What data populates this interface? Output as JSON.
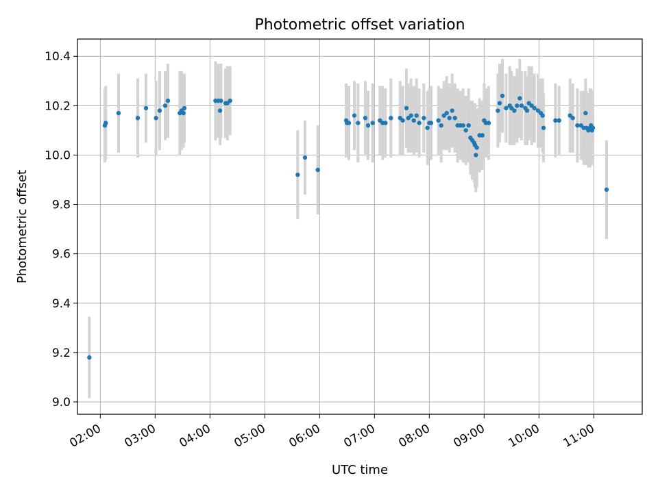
{
  "chart_data": {
    "type": "scatter",
    "title": "Photometric offset variation",
    "xlabel": "UTC time",
    "ylabel": "Photometric offset",
    "xlim": [
      "01:35",
      "11:53"
    ],
    "ylim": [
      8.95,
      10.47
    ],
    "x_ticks": [
      "02:00",
      "03:00",
      "04:00",
      "05:00",
      "06:00",
      "07:00",
      "08:00",
      "09:00",
      "10:00",
      "11:00"
    ],
    "y_ticks": [
      "9.0",
      "9.2",
      "9.4",
      "9.6",
      "9.8",
      "10.0",
      "10.2",
      "10.4"
    ],
    "grid": true,
    "colors": {
      "point": "#1f77b4",
      "errorbar": "#d3d3d3",
      "grid": "#b0b0b0"
    },
    "points": [
      {
        "t": "01:48",
        "y": 9.18,
        "err": 0.165
      },
      {
        "t": "02:05",
        "y": 10.12,
        "err": 0.15
      },
      {
        "t": "02:06",
        "y": 10.13,
        "err": 0.15
      },
      {
        "t": "02:20",
        "y": 10.17,
        "err": 0.16
      },
      {
        "t": "02:41",
        "y": 10.15,
        "err": 0.16
      },
      {
        "t": "02:50",
        "y": 10.19,
        "err": 0.14
      },
      {
        "t": "03:01",
        "y": 10.15,
        "err": 0.15
      },
      {
        "t": "03:05",
        "y": 10.18,
        "err": 0.16
      },
      {
        "t": "03:11",
        "y": 10.2,
        "err": 0.14
      },
      {
        "t": "03:14",
        "y": 10.22,
        "err": 0.15
      },
      {
        "t": "03:27",
        "y": 10.17,
        "err": 0.17
      },
      {
        "t": "03:29",
        "y": 10.18,
        "err": 0.16
      },
      {
        "t": "03:31",
        "y": 10.17,
        "err": 0.14
      },
      {
        "t": "03:32",
        "y": 10.19,
        "err": 0.14
      },
      {
        "t": "04:06",
        "y": 10.22,
        "err": 0.16
      },
      {
        "t": "04:09",
        "y": 10.22,
        "err": 0.15
      },
      {
        "t": "04:11",
        "y": 10.18,
        "err": 0.14
      },
      {
        "t": "04:12",
        "y": 10.22,
        "err": 0.15
      },
      {
        "t": "04:17",
        "y": 10.21,
        "err": 0.14
      },
      {
        "t": "04:19",
        "y": 10.21,
        "err": 0.15
      },
      {
        "t": "04:22",
        "y": 10.22,
        "err": 0.14
      },
      {
        "t": "05:36",
        "y": 9.92,
        "err": 0.18
      },
      {
        "t": "05:44",
        "y": 9.99,
        "err": 0.15
      },
      {
        "t": "05:58",
        "y": 9.94,
        "err": 0.18
      },
      {
        "t": "06:29",
        "y": 10.14,
        "err": 0.15
      },
      {
        "t": "06:30",
        "y": 10.13,
        "err": 0.14
      },
      {
        "t": "06:32",
        "y": 10.13,
        "err": 0.15
      },
      {
        "t": "06:38",
        "y": 10.16,
        "err": 0.14
      },
      {
        "t": "06:42",
        "y": 10.13,
        "err": 0.16
      },
      {
        "t": "06:50",
        "y": 10.15,
        "err": 0.15
      },
      {
        "t": "06:53",
        "y": 10.12,
        "err": 0.14
      },
      {
        "t": "06:58",
        "y": 10.13,
        "err": 0.16
      },
      {
        "t": "07:06",
        "y": 10.14,
        "err": 0.14
      },
      {
        "t": "07:09",
        "y": 10.13,
        "err": 0.15
      },
      {
        "t": "07:12",
        "y": 10.13,
        "err": 0.14
      },
      {
        "t": "07:18",
        "y": 10.15,
        "err": 0.16
      },
      {
        "t": "07:28",
        "y": 10.15,
        "err": 0.15
      },
      {
        "t": "07:31",
        "y": 10.14,
        "err": 0.14
      },
      {
        "t": "07:35",
        "y": 10.19,
        "err": 0.16
      },
      {
        "t": "07:37",
        "y": 10.15,
        "err": 0.14
      },
      {
        "t": "07:40",
        "y": 10.16,
        "err": 0.15
      },
      {
        "t": "07:43",
        "y": 10.14,
        "err": 0.14
      },
      {
        "t": "07:46",
        "y": 10.16,
        "err": 0.15
      },
      {
        "t": "07:49",
        "y": 10.13,
        "err": 0.14
      },
      {
        "t": "07:54",
        "y": 10.15,
        "err": 0.14
      },
      {
        "t": "07:58",
        "y": 10.11,
        "err": 0.15
      },
      {
        "t": "08:00",
        "y": 10.13,
        "err": 0.14
      },
      {
        "t": "08:02",
        "y": 10.13,
        "err": 0.15
      },
      {
        "t": "08:10",
        "y": 10.14,
        "err": 0.14
      },
      {
        "t": "08:13",
        "y": 10.12,
        "err": 0.15
      },
      {
        "t": "08:16",
        "y": 10.16,
        "err": 0.14
      },
      {
        "t": "08:19",
        "y": 10.17,
        "err": 0.15
      },
      {
        "t": "08:22",
        "y": 10.15,
        "err": 0.14
      },
      {
        "t": "08:25",
        "y": 10.18,
        "err": 0.15
      },
      {
        "t": "08:28",
        "y": 10.15,
        "err": 0.14
      },
      {
        "t": "08:31",
        "y": 10.12,
        "err": 0.15
      },
      {
        "t": "08:34",
        "y": 10.12,
        "err": 0.14
      },
      {
        "t": "08:37",
        "y": 10.12,
        "err": 0.15
      },
      {
        "t": "08:40",
        "y": 10.1,
        "err": 0.14
      },
      {
        "t": "08:43",
        "y": 10.12,
        "err": 0.15
      },
      {
        "t": "08:45",
        "y": 10.07,
        "err": 0.15
      },
      {
        "t": "08:47",
        "y": 10.06,
        "err": 0.16
      },
      {
        "t": "08:49",
        "y": 10.05,
        "err": 0.16
      },
      {
        "t": "08:50",
        "y": 10.04,
        "err": 0.17
      },
      {
        "t": "08:51",
        "y": 10.0,
        "err": 0.15
      },
      {
        "t": "08:52",
        "y": 10.03,
        "err": 0.16
      },
      {
        "t": "08:55",
        "y": 10.08,
        "err": 0.15
      },
      {
        "t": "08:58",
        "y": 10.08,
        "err": 0.14
      },
      {
        "t": "09:00",
        "y": 10.14,
        "err": 0.15
      },
      {
        "t": "09:02",
        "y": 10.13,
        "err": 0.14
      },
      {
        "t": "09:05",
        "y": 10.13,
        "err": 0.15
      },
      {
        "t": "09:15",
        "y": 10.18,
        "err": 0.15
      },
      {
        "t": "09:17",
        "y": 10.21,
        "err": 0.16
      },
      {
        "t": "09:20",
        "y": 10.24,
        "err": 0.15
      },
      {
        "t": "09:24",
        "y": 10.19,
        "err": 0.14
      },
      {
        "t": "09:28",
        "y": 10.2,
        "err": 0.16
      },
      {
        "t": "09:30",
        "y": 10.19,
        "err": 0.15
      },
      {
        "t": "09:33",
        "y": 10.18,
        "err": 0.14
      },
      {
        "t": "09:36",
        "y": 10.2,
        "err": 0.15
      },
      {
        "t": "09:39",
        "y": 10.23,
        "err": 0.16
      },
      {
        "t": "09:41",
        "y": 10.2,
        "err": 0.14
      },
      {
        "t": "09:45",
        "y": 10.19,
        "err": 0.15
      },
      {
        "t": "09:47",
        "y": 10.18,
        "err": 0.14
      },
      {
        "t": "09:49",
        "y": 10.21,
        "err": 0.15
      },
      {
        "t": "09:52",
        "y": 10.2,
        "err": 0.16
      },
      {
        "t": "09:55",
        "y": 10.19,
        "err": 0.14
      },
      {
        "t": "09:59",
        "y": 10.18,
        "err": 0.15
      },
      {
        "t": "10:02",
        "y": 10.17,
        "err": 0.14
      },
      {
        "t": "10:04",
        "y": 10.16,
        "err": 0.15
      },
      {
        "t": "10:05",
        "y": 10.11,
        "err": 0.14
      },
      {
        "t": "10:18",
        "y": 10.14,
        "err": 0.15
      },
      {
        "t": "10:22",
        "y": 10.14,
        "err": 0.14
      },
      {
        "t": "10:34",
        "y": 10.16,
        "err": 0.15
      },
      {
        "t": "10:37",
        "y": 10.15,
        "err": 0.14
      },
      {
        "t": "10:42",
        "y": 10.12,
        "err": 0.15
      },
      {
        "t": "10:46",
        "y": 10.12,
        "err": 0.14
      },
      {
        "t": "10:49",
        "y": 10.11,
        "err": 0.15
      },
      {
        "t": "10:51",
        "y": 10.17,
        "err": 0.14
      },
      {
        "t": "10:52",
        "y": 10.11,
        "err": 0.15
      },
      {
        "t": "10:54",
        "y": 10.1,
        "err": 0.15
      },
      {
        "t": "10:56",
        "y": 10.11,
        "err": 0.16
      },
      {
        "t": "10:57",
        "y": 10.12,
        "err": 0.15
      },
      {
        "t": "10:58",
        "y": 10.1,
        "err": 0.14
      },
      {
        "t": "10:59",
        "y": 10.11,
        "err": 0.15
      },
      {
        "t": "11:14",
        "y": 9.86,
        "err": 0.2
      }
    ]
  }
}
